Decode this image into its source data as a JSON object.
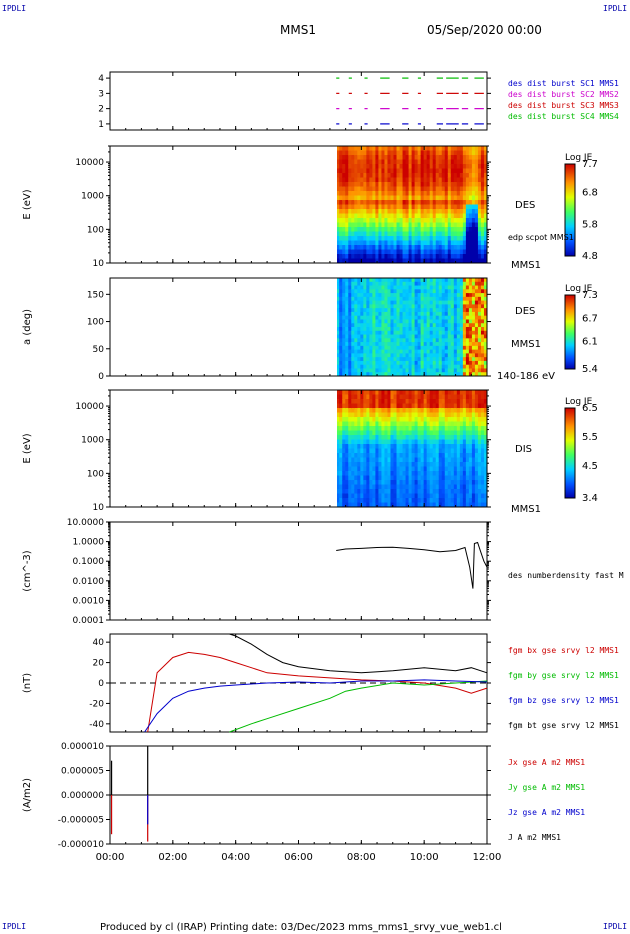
{
  "header": {
    "corner_label": "IPDLI",
    "spacecraft": "MMS1",
    "date": "05/Sep/2020 00:00"
  },
  "footer": {
    "text": "Produced by cl (IRAP)   Printing date: 03/Dec/2023   mms_mms1_srvy_vue_web1.cl"
  },
  "colors": {
    "mms1": "#0000cc",
    "mms2": "#cc00cc",
    "mms3": "#cc0000",
    "mms4": "#00bb00",
    "black": "#000000"
  },
  "chart_data": [
    {
      "id": "burst",
      "type": "line",
      "xlim": [
        0,
        12
      ],
      "yticks": [
        "1",
        "2",
        "3",
        "4"
      ],
      "ylim": [
        0.6,
        4.4
      ],
      "legend": [
        {
          "label": "des dist burst SC1 MMS1",
          "color": "#0000cc"
        },
        {
          "label": "des dist burst SC2 MMS2",
          "color": "#cc00cc"
        },
        {
          "label": "des dist burst SC3 MMS3",
          "color": "#cc0000"
        },
        {
          "label": "des dist burst SC4 MMS4",
          "color": "#00bb00"
        }
      ],
      "series": [
        {
          "level": 1,
          "color": "#0000cc",
          "intervals": [
            [
              7.2,
              7.3
            ],
            [
              7.6,
              7.7
            ],
            [
              8.1,
              8.2
            ],
            [
              8.6,
              8.9
            ],
            [
              9.3,
              9.5
            ],
            [
              9.8,
              9.9
            ],
            [
              10.4,
              10.6
            ],
            [
              10.7,
              11.1
            ],
            [
              11.2,
              11.4
            ],
            [
              11.6,
              11.9
            ]
          ]
        },
        {
          "level": 2,
          "color": "#cc00cc",
          "intervals": [
            [
              7.2,
              7.3
            ],
            [
              7.6,
              7.7
            ],
            [
              8.1,
              8.2
            ],
            [
              8.6,
              8.9
            ],
            [
              9.3,
              9.5
            ],
            [
              9.8,
              9.9
            ],
            [
              10.4,
              10.6
            ],
            [
              10.7,
              11.1
            ],
            [
              11.2,
              11.4
            ],
            [
              11.6,
              11.9
            ]
          ]
        },
        {
          "level": 3,
          "color": "#cc0000",
          "intervals": [
            [
              7.2,
              7.3
            ],
            [
              7.6,
              7.7
            ],
            [
              8.1,
              8.2
            ],
            [
              8.6,
              8.9
            ],
            [
              9.3,
              9.5
            ],
            [
              9.8,
              9.9
            ],
            [
              10.4,
              10.6
            ],
            [
              10.7,
              11.1
            ],
            [
              11.2,
              11.4
            ],
            [
              11.6,
              11.9
            ]
          ]
        },
        {
          "level": 4,
          "color": "#00bb00",
          "intervals": [
            [
              7.2,
              7.3
            ],
            [
              7.6,
              7.7
            ],
            [
              8.1,
              8.2
            ],
            [
              8.6,
              8.9
            ],
            [
              9.3,
              9.5
            ],
            [
              9.8,
              9.9
            ],
            [
              10.4,
              10.6
            ],
            [
              10.7,
              11.1
            ],
            [
              11.2,
              11.4
            ],
            [
              11.6,
              11.9
            ]
          ]
        }
      ]
    },
    {
      "id": "des_energy",
      "type": "heatmap",
      "ylabel": "E (eV)",
      "yscale": "log",
      "ylim": [
        10,
        30000
      ],
      "yticks": [
        "10",
        "100",
        "1000",
        "10000"
      ],
      "data_start": 7.2,
      "side_labels": [
        "DES",
        "edp scpot MMS1",
        "MMS1"
      ],
      "colorbar": {
        "title": "Log JE",
        "ticks": [
          "7.7",
          "6.8",
          "5.8",
          "4.8"
        ],
        "range": [
          4.8,
          7.7
        ]
      }
    },
    {
      "id": "des_pitch",
      "type": "heatmap",
      "ylabel": "a (deg)",
      "ylim": [
        0,
        180
      ],
      "yticks": [
        "0",
        "50",
        "100",
        "150"
      ],
      "data_start": 7.2,
      "side_labels": [
        "DES",
        "MMS1",
        "140-186 eV"
      ],
      "colorbar": {
        "title": "Log JE",
        "ticks": [
          "7.3",
          "6.7",
          "6.1",
          "5.4"
        ],
        "range": [
          5.4,
          7.3
        ]
      }
    },
    {
      "id": "dis_energy",
      "type": "heatmap",
      "ylabel": "E (eV)",
      "yscale": "log",
      "ylim": [
        10,
        30000
      ],
      "yticks": [
        "10",
        "100",
        "1000",
        "10000"
      ],
      "data_start": 7.2,
      "side_labels": [
        "DIS",
        "MMS1"
      ],
      "colorbar": {
        "title": "Log JE",
        "ticks": [
          "6.5",
          "5.5",
          "4.5",
          "3.4"
        ],
        "range": [
          3.4,
          6.5
        ]
      }
    },
    {
      "id": "density",
      "type": "line",
      "ylabel": "(cm^-3)",
      "yscale": "log",
      "ylim": [
        0.0001,
        10
      ],
      "yticks": [
        "0.0001",
        "0.0010",
        "0.0100",
        "0.1000",
        "1.0000",
        "10.0000"
      ],
      "legend": [
        {
          "label": "des numberdensity fast M",
          "color": "#000000"
        }
      ],
      "series": [
        {
          "name": "des numberdensity fast M",
          "color": "#000000",
          "x": [
            7.2,
            7.5,
            8.0,
            8.5,
            9.0,
            9.5,
            10.0,
            10.5,
            11.0,
            11.3,
            11.45,
            11.55,
            11.6,
            11.7,
            11.8,
            11.9,
            12.0
          ],
          "y": [
            0.35,
            0.42,
            0.45,
            0.5,
            0.52,
            0.45,
            0.38,
            0.3,
            0.35,
            0.5,
            0.05,
            0.004,
            0.8,
            0.9,
            0.3,
            0.1,
            0.05
          ]
        }
      ]
    },
    {
      "id": "fgm",
      "type": "line",
      "ylabel": "(nT)",
      "ylim": [
        -48,
        48
      ],
      "yticks": [
        "-40",
        "-20",
        "0",
        "20",
        "40"
      ],
      "legend": [
        {
          "label": "fgm bx gse srvy l2 MMS1",
          "color": "#cc0000"
        },
        {
          "label": "fgm by gse srvy l2 MMS1",
          "color": "#00bb00"
        },
        {
          "label": "fgm bz gse srvy l2 MMS1",
          "color": "#0000cc"
        },
        {
          "label": "fgm bt gse srvy l2 MMS1",
          "color": "#000000"
        }
      ],
      "series": [
        {
          "name": "bx",
          "color": "#cc0000",
          "x": [
            1.2,
            1.5,
            2.0,
            2.5,
            3.0,
            3.5,
            4.0,
            4.5,
            5.0,
            6.0,
            7.0,
            8.0,
            9.0,
            10.0,
            11.0,
            11.5,
            12.0
          ],
          "y": [
            -48,
            10,
            25,
            30,
            28,
            25,
            20,
            15,
            10,
            7,
            5,
            3,
            2,
            0,
            -5,
            -10,
            -5
          ]
        },
        {
          "name": "by",
          "color": "#00bb00",
          "x": [
            3.8,
            4.5,
            5.0,
            6.0,
            7.0,
            7.5,
            8.0,
            9.0,
            10.0,
            11.0,
            12.0
          ],
          "y": [
            -48,
            -40,
            -35,
            -25,
            -15,
            -8,
            -5,
            0,
            -2,
            0,
            2
          ]
        },
        {
          "name": "bz",
          "color": "#0000cc",
          "x": [
            1.1,
            1.5,
            2.0,
            2.5,
            3.0,
            3.5,
            4.0,
            5.0,
            6.0,
            7.0,
            8.0,
            9.0,
            10.0,
            11.0,
            12.0
          ],
          "y": [
            -48,
            -30,
            -15,
            -8,
            -5,
            -3,
            -2,
            0,
            1,
            0,
            2,
            2,
            3,
            2,
            1
          ]
        },
        {
          "name": "bt",
          "color": "#000000",
          "x": [
            3.8,
            4.0,
            4.5,
            5.0,
            5.5,
            6.0,
            7.0,
            8.0,
            9.0,
            10.0,
            11.0,
            11.5,
            12.0
          ],
          "y": [
            48,
            46,
            38,
            28,
            20,
            16,
            12,
            10,
            12,
            15,
            12,
            15,
            10
          ]
        }
      ]
    },
    {
      "id": "current",
      "type": "line",
      "ylabel": "(A/m2)",
      "ylim": [
        -1e-05,
        1e-05
      ],
      "yticks": [
        "-0.000010",
        "-0.000005",
        "0.000000",
        "0.000005",
        "0.000010"
      ],
      "legend": [
        {
          "label": "Jx gse A m2 MMS1",
          "color": "#cc0000"
        },
        {
          "label": "Jy gse A m2 MMS1",
          "color": "#00bb00"
        },
        {
          "label": "Jz gse A m2 MMS1",
          "color": "#0000cc"
        },
        {
          "label": "J A m2 MMS1",
          "color": "#000000"
        }
      ],
      "spikes": [
        {
          "x": 0.05,
          "color": "#000000",
          "y": 7e-06
        },
        {
          "x": 0.05,
          "color": "#cc0000",
          "y": -8e-06
        },
        {
          "x": 1.2,
          "color": "#000000",
          "y": 1e-05
        },
        {
          "x": 1.2,
          "color": "#cc0000",
          "y": -9.5e-06
        },
        {
          "x": 1.2,
          "color": "#0000cc",
          "y": -6e-06
        }
      ]
    }
  ],
  "xaxis": {
    "range": [
      0,
      12
    ],
    "tick_labels": [
      "00:00",
      "02:00",
      "04:00",
      "06:00",
      "08:00",
      "10:00",
      "12:00"
    ]
  }
}
